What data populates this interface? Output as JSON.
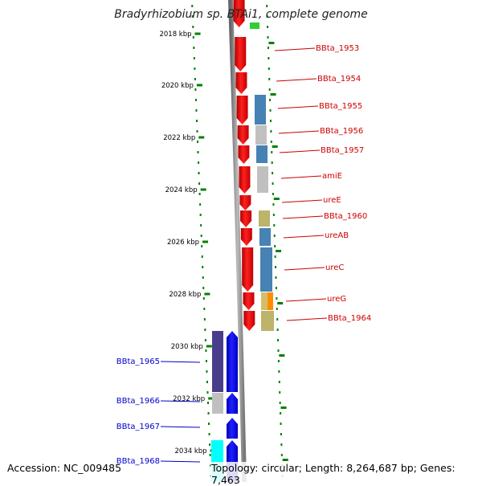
{
  "title": "Bradyrhizobium sp. BTAi1, complete genome",
  "footer": {
    "accession": "Accession: NC_009485",
    "summary": "Topology: circular; Length: 8,264,687 bp; Genes: 7,463"
  },
  "ruler": {
    "ticks": [
      "2018 kbp",
      "2020 kbp",
      "2022 kbp",
      "2024 kbp",
      "2026 kbp",
      "2028 kbp",
      "2030 kbp",
      "2032 kbp",
      "2034 kbp"
    ]
  },
  "genes": {
    "reverse_strand_labels": [
      "BBta_1953",
      "BBta_1954",
      "BBta_1955",
      "BBta_1956",
      "BBta_1957",
      "amiE",
      "ureE",
      "BBta_1960",
      "ureAB",
      "ureC",
      "ureG",
      "BBta_1964"
    ],
    "forward_strand_labels": [
      "BBta_1965",
      "BBta_1966",
      "BBta_1967",
      "BBta_1968"
    ]
  },
  "colors": {
    "reverse_gene": "#ff0000",
    "forward_gene": "#0000ff",
    "tick": "#008000",
    "backbone": "#888888",
    "label_red": "#cc0000",
    "label_blue": "#0000cc"
  }
}
